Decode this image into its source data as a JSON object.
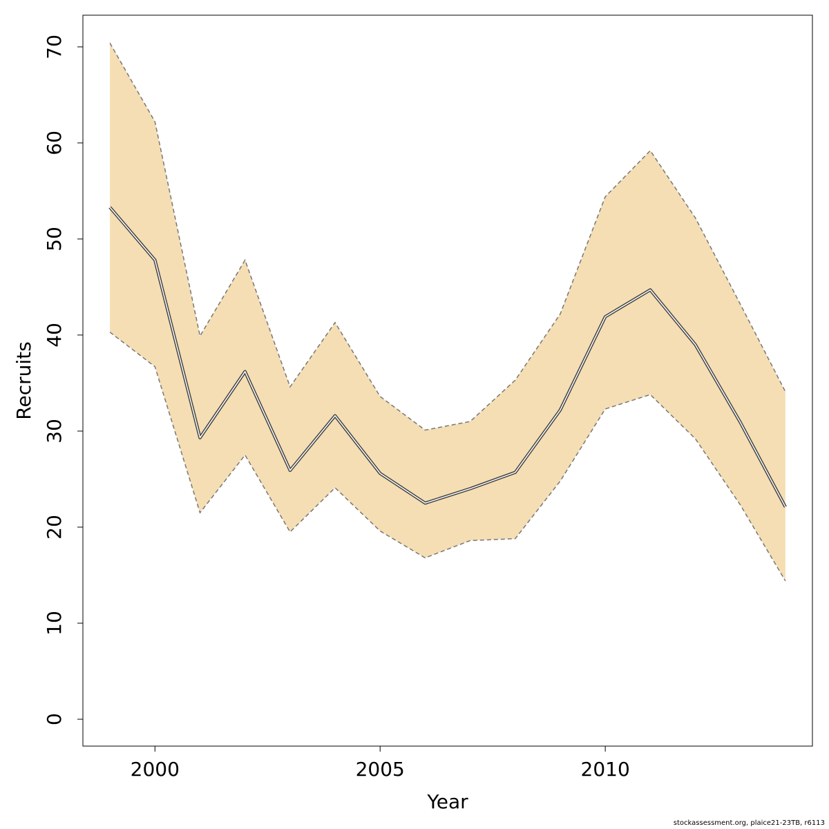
{
  "chart_data": {
    "type": "area",
    "xlabel": "Year",
    "ylabel": "Recruits",
    "xlim": [
      1998.4,
      2014.6
    ],
    "ylim": [
      -2.8,
      73.3
    ],
    "x_ticks": [
      2000,
      2005,
      2010
    ],
    "y_ticks": [
      0,
      10,
      20,
      30,
      40,
      50,
      60,
      70
    ],
    "grid": false,
    "colors": {
      "band": "#f5deb3",
      "bounds": "#777777",
      "estimate": "#444444"
    },
    "x": [
      1999,
      2000,
      2001,
      2002,
      2003,
      2004,
      2005,
      2006,
      2007,
      2008,
      2009,
      2010,
      2011,
      2012,
      2013,
      2014
    ],
    "series": [
      {
        "role": "estimate",
        "values": [
          53.3,
          47.8,
          29.3,
          36.2,
          25.9,
          31.6,
          25.6,
          22.5,
          24.0,
          25.7,
          32.2,
          41.9,
          44.7,
          39.0,
          30.9,
          22.1
        ]
      },
      {
        "role": "upper",
        "values": [
          70.4,
          62.2,
          39.9,
          47.8,
          34.6,
          41.3,
          33.6,
          30.1,
          31.0,
          35.3,
          42.2,
          54.4,
          59.2,
          52.2,
          43.2,
          34.1
        ]
      },
      {
        "role": "lower",
        "values": [
          40.3,
          36.7,
          21.5,
          27.5,
          19.5,
          24.1,
          19.6,
          16.8,
          18.6,
          18.8,
          24.8,
          32.3,
          33.8,
          29.2,
          22.3,
          14.4
        ]
      }
    ]
  },
  "footer": {
    "note": "stockassessment.org, plaice21-23TB, r6113"
  }
}
